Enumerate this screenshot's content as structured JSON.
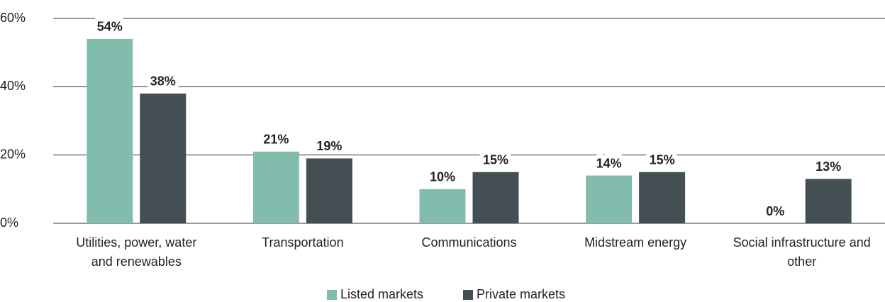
{
  "chart_data": {
    "type": "bar",
    "categories": [
      "Utilities, power, water and renewables",
      "Transportation",
      "Communications",
      "Midstream energy",
      "Social infrastructure and other"
    ],
    "series": [
      {
        "name": "Listed markets",
        "color": "#82bcad",
        "values": [
          54,
          21,
          10,
          14,
          0
        ],
        "value_labels": [
          "54%",
          "21%",
          "10%",
          "14%",
          "0%"
        ]
      },
      {
        "name": "Private markets",
        "color": "#434f53",
        "values": [
          38,
          19,
          15,
          15,
          13
        ],
        "value_labels": [
          "38%",
          "19%",
          "15%",
          "15%",
          "13%"
        ]
      }
    ],
    "ylim": [
      0,
      60
    ],
    "yticks": [
      {
        "value": 0,
        "label": "0%"
      },
      {
        "value": 20,
        "label": "20%"
      },
      {
        "value": 40,
        "label": "40%"
      },
      {
        "value": 60,
        "label": "60%"
      }
    ],
    "grid": true,
    "legend": "bottom"
  }
}
